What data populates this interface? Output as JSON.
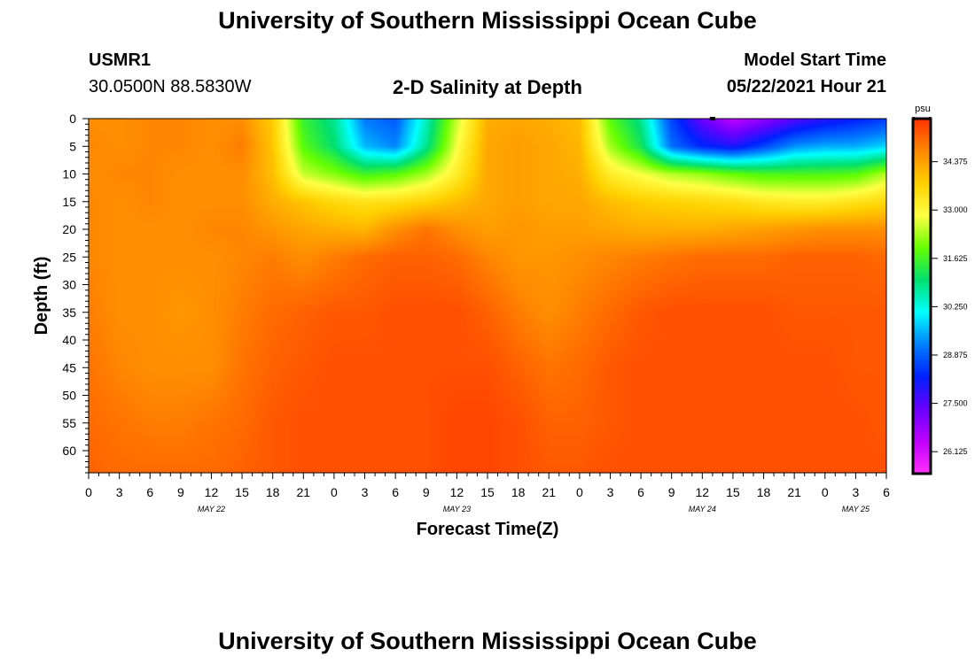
{
  "header": {
    "title": "University of Southern Mississippi Ocean Cube",
    "station_id": "USMR1",
    "station_coords": "30.0500N  88.5830W",
    "plot_title": "2-D Salinity at Depth",
    "model_start_label": "Model Start Time",
    "model_start_value": "05/22/2021 Hour 21"
  },
  "footer": {
    "title": "University of Southern Mississippi Ocean Cube"
  },
  "chart_data": {
    "type": "heatmap",
    "title": "2-D Salinity at Depth",
    "xlabel": "Forecast Time(Z)",
    "ylabel": "Depth (ft)",
    "x_tick_labels": [
      "0",
      "3",
      "6",
      "9",
      "12",
      "15",
      "18",
      "21",
      "0",
      "3",
      "6",
      "9",
      "12",
      "15",
      "18",
      "21",
      "0",
      "3",
      "6",
      "9",
      "12",
      "15",
      "18",
      "21",
      "0",
      "3",
      "6"
    ],
    "x_hours": [
      0,
      3,
      6,
      9,
      12,
      15,
      18,
      21,
      24,
      27,
      30,
      33,
      36,
      39,
      42,
      45,
      48,
      51,
      54,
      57,
      60,
      63,
      66,
      69,
      72,
      75,
      78
    ],
    "x_range_hours": [
      0,
      78
    ],
    "date_labels": [
      {
        "label": "MAY 22",
        "hour": 12
      },
      {
        "label": "MAY 23",
        "hour": 36
      },
      {
        "label": "MAY 24",
        "hour": 60
      },
      {
        "label": "MAY 25",
        "hour": 75
      }
    ],
    "y_ticks": [
      0,
      5,
      10,
      15,
      20,
      25,
      30,
      35,
      40,
      45,
      50,
      55,
      60
    ],
    "y_range": [
      0,
      64
    ],
    "colorbar": {
      "unit": "psu",
      "range": [
        25.5,
        35.6
      ],
      "tick_labels": [
        "34.375",
        "33.000",
        "31.625",
        "30.250",
        "28.875",
        "27.500",
        "26.125"
      ],
      "tick_values": [
        34.375,
        33.0,
        31.625,
        30.25,
        28.875,
        27.5,
        26.125
      ],
      "colors": [
        "#ff3300",
        "#ff8800",
        "#ffd000",
        "#ffff44",
        "#66ff00",
        "#00e070",
        "#00ffff",
        "#0080ff",
        "#0020ff",
        "#6a00ff",
        "#c000ff",
        "#ff30ff"
      ]
    },
    "salinity_field": {
      "depths_ft": [
        0,
        5,
        10,
        15,
        20,
        25,
        35,
        45,
        55,
        64
      ],
      "hours": [
        0,
        3,
        6,
        9,
        12,
        15,
        18,
        21,
        24,
        27,
        30,
        33,
        36,
        39,
        42,
        45,
        48,
        51,
        54,
        57,
        60,
        63,
        66,
        69,
        72,
        75,
        78
      ],
      "values_psu": [
        [
          34.6,
          34.6,
          34.7,
          34.7,
          34.6,
          34.6,
          33.8,
          31.5,
          30.8,
          29.1,
          28.8,
          30.5,
          32.5,
          34.2,
          34.3,
          34.2,
          34.0,
          31.8,
          30.8,
          28.6,
          27.3,
          26.4,
          26.9,
          27.5,
          27.9,
          28.2,
          28.5
        ],
        [
          34.7,
          34.6,
          34.7,
          34.7,
          34.6,
          34.8,
          33.9,
          31.8,
          31.0,
          29.6,
          29.2,
          30.8,
          32.8,
          34.3,
          34.4,
          34.3,
          34.1,
          32.3,
          31.2,
          29.0,
          28.3,
          28.0,
          28.6,
          29.3,
          29.5,
          29.5,
          29.8
        ],
        [
          34.6,
          34.7,
          34.7,
          34.6,
          34.6,
          34.6,
          34.0,
          32.5,
          32.1,
          31.6,
          31.8,
          32.3,
          33.2,
          34.3,
          34.4,
          34.3,
          34.2,
          33.2,
          32.8,
          32.4,
          32.2,
          31.9,
          31.7,
          31.7,
          31.7,
          31.8,
          32.4
        ],
        [
          34.7,
          34.6,
          34.7,
          34.6,
          34.6,
          34.6,
          34.2,
          33.9,
          33.6,
          33.4,
          33.5,
          33.7,
          34.0,
          34.3,
          34.4,
          34.3,
          34.3,
          34.0,
          33.8,
          33.7,
          33.6,
          33.5,
          33.3,
          33.2,
          33.2,
          33.4,
          33.6
        ],
        [
          34.7,
          34.6,
          34.6,
          34.6,
          34.7,
          34.7,
          34.5,
          34.3,
          34.2,
          34.1,
          34.6,
          34.9,
          34.6,
          34.4,
          34.5,
          34.4,
          34.4,
          34.3,
          34.2,
          34.2,
          34.2,
          34.3,
          34.4,
          34.5,
          34.6,
          34.6,
          34.6
        ],
        [
          34.7,
          34.6,
          34.6,
          34.6,
          34.6,
          34.7,
          34.8,
          34.6,
          34.8,
          35.0,
          35.1,
          35.1,
          35.0,
          34.7,
          34.5,
          34.5,
          34.6,
          34.7,
          34.8,
          34.9,
          35.0,
          35.0,
          35.0,
          35.1,
          35.1,
          35.1,
          35.0
        ],
        [
          34.8,
          34.6,
          34.6,
          34.5,
          34.6,
          34.8,
          35.0,
          35.1,
          35.2,
          35.2,
          35.3,
          35.3,
          35.3,
          35.1,
          34.8,
          34.6,
          34.8,
          35.0,
          35.2,
          35.3,
          35.3,
          35.3,
          35.3,
          35.2,
          35.2,
          35.2,
          35.2
        ],
        [
          34.9,
          34.7,
          34.6,
          34.6,
          34.6,
          34.9,
          35.1,
          35.2,
          35.3,
          35.3,
          35.3,
          35.3,
          35.3,
          35.3,
          35.1,
          34.9,
          35.0,
          35.2,
          35.3,
          35.3,
          35.3,
          35.3,
          35.3,
          35.3,
          35.3,
          35.2,
          35.2
        ],
        [
          35.0,
          34.9,
          34.8,
          34.8,
          34.9,
          35.0,
          35.2,
          35.3,
          35.3,
          35.3,
          35.3,
          35.3,
          35.4,
          35.4,
          35.3,
          35.1,
          35.1,
          35.2,
          35.3,
          35.3,
          35.3,
          35.3,
          35.3,
          35.3,
          35.3,
          35.3,
          35.2
        ],
        [
          35.1,
          35.0,
          35.0,
          35.0,
          35.0,
          35.1,
          35.2,
          35.3,
          35.3,
          35.3,
          35.3,
          35.3,
          35.4,
          35.4,
          35.3,
          35.2,
          35.2,
          35.3,
          35.3,
          35.3,
          35.3,
          35.3,
          35.3,
          35.3,
          35.3,
          35.3,
          35.3
        ]
      ]
    }
  }
}
